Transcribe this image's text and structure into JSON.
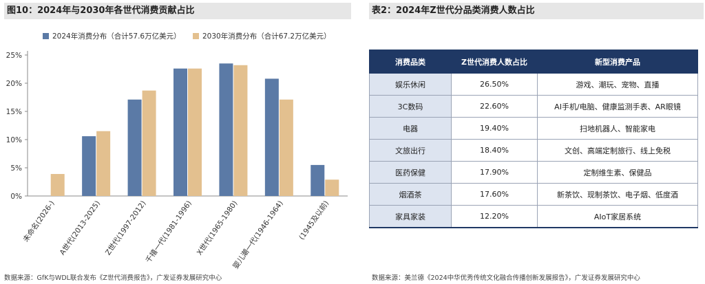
{
  "left_panel": {
    "title": "图10：2024年与2030年各世代消费贡献占比",
    "source": "数据来源：GfK与WDL联合发布《Z世代消费报告》，广发证券发展研究中心"
  },
  "right_panel": {
    "title": "表2：2024年Z世代分品类消费人数占比",
    "source": "数据来源：美兰德《2024中华优秀传统文化融合传播创新发展报告》，广发证券发展研究中心",
    "table": {
      "headers": [
        "消费品类",
        "Z世代消费人数占比",
        "新型消费产品"
      ],
      "rows": [
        [
          "娱乐休闲",
          "26.50%",
          "游戏、潮玩、宠物、直播"
        ],
        [
          "3C数码",
          "22.60%",
          "AI手机/电脑、健康监测手表、AR眼镜"
        ],
        [
          "电器",
          "19.40%",
          "扫地机器人、智能家电"
        ],
        [
          "文旅出行",
          "18.40%",
          "文创、高端定制旅行、线上免税"
        ],
        [
          "医药保健",
          "17.90%",
          "定制维生素、保健品"
        ],
        [
          "烟酒茶",
          "17.60%",
          "新茶饮、现制茶饮、电子烟、低度酒"
        ],
        [
          "家具家装",
          "12.20%",
          "AIoT家居系统"
        ]
      ]
    }
  },
  "colors": {
    "series_2024": "#5b7aa6",
    "series_2030": "#e3c08f",
    "header_bg": "#1f3864",
    "category_bg": "#dde4f0"
  },
  "chart_data": {
    "type": "bar",
    "title": "图10：2024年与2030年各世代消费贡献占比",
    "categories": [
      "未命名(2026-)",
      "A世代(2013-2025)",
      "Z世代(1997-2012)",
      "千禧一代(1981-1996)",
      "X世代(1965-1980)",
      "婴儿潮一代(1946-1964)",
      "(1945及以前)"
    ],
    "series": [
      {
        "name": "2024年消费分布（合计57.6万亿美元）",
        "values": [
          0,
          10.6,
          17.1,
          22.6,
          23.5,
          20.8,
          5.5
        ]
      },
      {
        "name": "2030年消费分布（合计67.2万亿美元）",
        "values": [
          3.9,
          11.5,
          18.7,
          22.6,
          23.2,
          17.1,
          2.9
        ]
      }
    ],
    "y_ticks": [
      "0%",
      "5%",
      "10%",
      "15%",
      "20%",
      "25%"
    ],
    "ylim": [
      0,
      25
    ],
    "xlabel": "",
    "ylabel": "",
    "legend_position": "top",
    "grid": false
  }
}
